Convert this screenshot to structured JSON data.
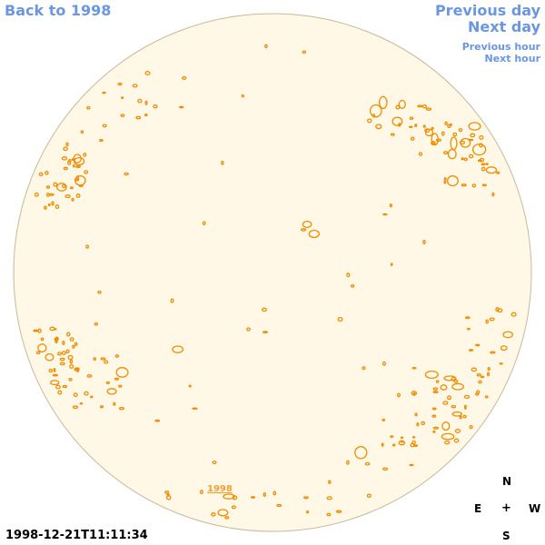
{
  "nav": {
    "back": "Back to 1998",
    "previous_day": "Previous day",
    "next_day": "Next day",
    "previous_hour": "Previous hour",
    "next_hour": "Next hour"
  },
  "timestamp": "1998-12-21T11:11:34",
  "year_label": "1998",
  "compass": {
    "north": "N",
    "south": "S",
    "east": "E",
    "west": "W",
    "center": "+"
  },
  "colors": {
    "link": "#6b96e0",
    "disk_fill": "#fff8e6",
    "disk_edge": "#c8b89a",
    "contour": "#f08c00"
  }
}
